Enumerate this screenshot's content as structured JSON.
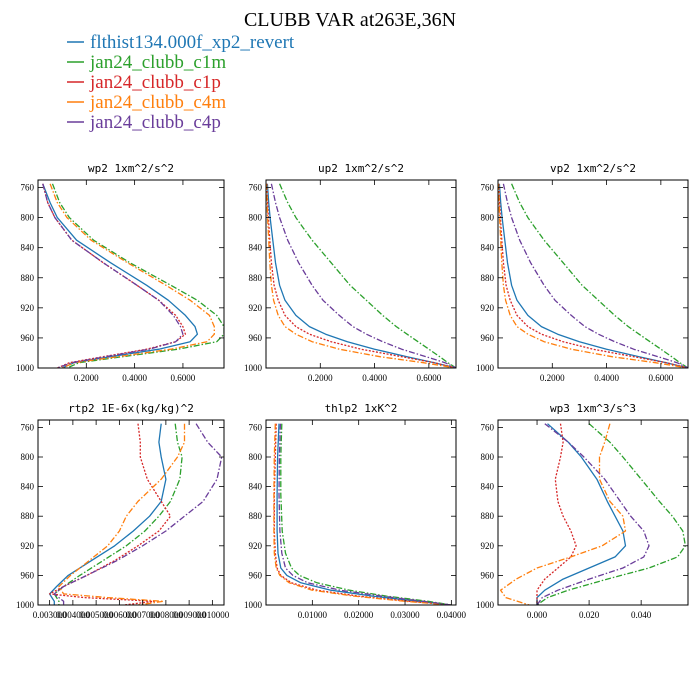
{
  "figure": {
    "title": "CLUBB VAR at263E,36N"
  },
  "legend": [
    {
      "name": "flthist134.000f_xp2_revert",
      "color": "#1f77b4",
      "dash": "solid"
    },
    {
      "name": "jan24_clubb_c1m",
      "color": "#2ca02c",
      "dash": "dashdot"
    },
    {
      "name": "jan24_clubb_c1p",
      "color": "#d62728",
      "dash": "dot"
    },
    {
      "name": "jan24_clubb_c4m",
      "color": "#ff7f0e",
      "dash": "dashdot"
    },
    {
      "name": "jan24_clubb_c4p",
      "color": "#6a3d9a",
      "dash": "dashdot"
    }
  ],
  "chart_data": [
    {
      "type": "line",
      "title": "wp2  1xm^2/s^2",
      "xlim": [
        0,
        0.77
      ],
      "ylim": [
        1000,
        750
      ],
      "xticks": [
        0.2,
        0.4,
        0.6
      ],
      "xtick_labels": [
        "0.2000",
        "0.4000",
        "0.6000"
      ],
      "yticks": [
        760,
        800,
        840,
        880,
        920,
        960,
        1000
      ],
      "y": [
        755,
        780,
        800,
        830,
        860,
        890,
        910,
        930,
        945,
        955,
        965,
        975,
        985,
        993,
        1000
      ],
      "series": [
        {
          "name": "flthist134.000f_xp2_revert",
          "values": [
            0.02,
            0.05,
            0.08,
            0.16,
            0.3,
            0.45,
            0.54,
            0.61,
            0.65,
            0.66,
            0.63,
            0.5,
            0.3,
            0.15,
            0.1
          ]
        },
        {
          "name": "jan24_clubb_c1m",
          "values": [
            0.06,
            0.09,
            0.13,
            0.23,
            0.38,
            0.55,
            0.66,
            0.74,
            0.77,
            0.77,
            0.74,
            0.58,
            0.35,
            0.17,
            0.12
          ]
        },
        {
          "name": "jan24_clubb_c1p",
          "values": [
            0.02,
            0.04,
            0.07,
            0.14,
            0.27,
            0.41,
            0.5,
            0.57,
            0.6,
            0.61,
            0.57,
            0.45,
            0.27,
            0.13,
            0.08
          ]
        },
        {
          "name": "jan24_clubb_c4m",
          "values": [
            0.05,
            0.08,
            0.12,
            0.22,
            0.37,
            0.53,
            0.63,
            0.71,
            0.73,
            0.73,
            0.7,
            0.55,
            0.33,
            0.15,
            0.1
          ]
        },
        {
          "name": "jan24_clubb_c4p",
          "values": [
            0.02,
            0.04,
            0.07,
            0.14,
            0.27,
            0.41,
            0.5,
            0.56,
            0.59,
            0.6,
            0.57,
            0.46,
            0.28,
            0.14,
            0.08
          ]
        }
      ]
    },
    {
      "type": "line",
      "title": "up2  1xm^2/s^2",
      "xlim": [
        0,
        0.7
      ],
      "ylim": [
        1000,
        750
      ],
      "xticks": [
        0.2,
        0.4,
        0.6
      ],
      "xtick_labels": [
        "0.2000",
        "0.4000",
        "0.6000"
      ],
      "yticks": [
        760,
        800,
        840,
        880,
        920,
        960,
        1000
      ],
      "y": [
        755,
        780,
        800,
        830,
        860,
        890,
        910,
        930,
        945,
        955,
        965,
        975,
        985,
        993,
        1000
      ],
      "series": [
        {
          "name": "flthist134.000f_xp2_revert",
          "values": [
            0.005,
            0.01,
            0.015,
            0.025,
            0.035,
            0.05,
            0.07,
            0.11,
            0.16,
            0.22,
            0.3,
            0.4,
            0.52,
            0.62,
            0.7
          ]
        },
        {
          "name": "jan24_clubb_c1m",
          "values": [
            0.05,
            0.08,
            0.11,
            0.17,
            0.24,
            0.31,
            0.37,
            0.43,
            0.48,
            0.52,
            0.56,
            0.6,
            0.64,
            0.67,
            0.7
          ]
        },
        {
          "name": "jan24_clubb_c1p",
          "values": [
            0.003,
            0.006,
            0.009,
            0.014,
            0.02,
            0.03,
            0.045,
            0.07,
            0.11,
            0.16,
            0.24,
            0.35,
            0.5,
            0.62,
            0.7
          ]
        },
        {
          "name": "jan24_clubb_c4m",
          "values": [
            0.002,
            0.004,
            0.006,
            0.01,
            0.014,
            0.02,
            0.028,
            0.045,
            0.07,
            0.11,
            0.17,
            0.27,
            0.42,
            0.58,
            0.7
          ]
        },
        {
          "name": "jan24_clubb_c4p",
          "values": [
            0.02,
            0.035,
            0.05,
            0.08,
            0.12,
            0.17,
            0.21,
            0.27,
            0.32,
            0.37,
            0.43,
            0.5,
            0.59,
            0.66,
            0.7
          ]
        }
      ]
    },
    {
      "type": "line",
      "title": "vp2  1xm^2/s^2",
      "xlim": [
        0,
        0.7
      ],
      "ylim": [
        1000,
        750
      ],
      "xticks": [
        0.2,
        0.4,
        0.6
      ],
      "xtick_labels": [
        "0.2000",
        "0.4000",
        "0.6000"
      ],
      "yticks": [
        760,
        800,
        840,
        880,
        920,
        960,
        1000
      ],
      "y": [
        755,
        780,
        800,
        830,
        860,
        890,
        910,
        930,
        945,
        955,
        965,
        975,
        985,
        993,
        1000
      ],
      "series": [
        {
          "name": "flthist134.000f_xp2_revert",
          "values": [
            0.005,
            0.01,
            0.015,
            0.025,
            0.035,
            0.05,
            0.07,
            0.11,
            0.16,
            0.22,
            0.3,
            0.4,
            0.52,
            0.62,
            0.7
          ]
        },
        {
          "name": "jan24_clubb_c1m",
          "values": [
            0.05,
            0.08,
            0.11,
            0.17,
            0.24,
            0.31,
            0.37,
            0.43,
            0.48,
            0.52,
            0.56,
            0.6,
            0.64,
            0.67,
            0.7
          ]
        },
        {
          "name": "jan24_clubb_c1p",
          "values": [
            0.003,
            0.006,
            0.009,
            0.014,
            0.02,
            0.03,
            0.045,
            0.07,
            0.11,
            0.16,
            0.24,
            0.35,
            0.5,
            0.62,
            0.7
          ]
        },
        {
          "name": "jan24_clubb_c4m",
          "values": [
            0.002,
            0.004,
            0.006,
            0.01,
            0.014,
            0.02,
            0.028,
            0.045,
            0.07,
            0.11,
            0.17,
            0.27,
            0.42,
            0.58,
            0.7
          ]
        },
        {
          "name": "jan24_clubb_c4p",
          "values": [
            0.02,
            0.035,
            0.05,
            0.08,
            0.12,
            0.17,
            0.21,
            0.27,
            0.32,
            0.37,
            0.43,
            0.5,
            0.59,
            0.66,
            0.7
          ]
        }
      ]
    },
    {
      "type": "line",
      "title": "rtp2  1E-6x(kg/kg)^2",
      "xlim": [
        0.0025,
        0.0105
      ],
      "ylim": [
        1000,
        750
      ],
      "xticks": [
        0.003,
        0.004,
        0.005,
        0.006,
        0.007,
        0.008,
        0.009,
        0.01
      ],
      "xtick_labels": [
        "0.003000",
        "0.004000",
        "0.005000",
        "0.006000",
        "0.007000",
        "0.008000",
        "0.009000",
        "0.010000"
      ],
      "yticks": [
        760,
        800,
        840,
        880,
        920,
        960,
        1000
      ],
      "y": [
        755,
        780,
        800,
        830,
        860,
        880,
        900,
        920,
        940,
        960,
        975,
        985,
        990,
        995,
        1000
      ],
      "series": [
        {
          "name": "flthist134.000f_xp2_revert",
          "values": [
            0.0078,
            0.0077,
            0.0078,
            0.008,
            0.0078,
            0.0073,
            0.0066,
            0.0058,
            0.0048,
            0.0038,
            0.0033,
            0.003,
            0.0031,
            0.0032,
            0.0032
          ]
        },
        {
          "name": "jan24_clubb_c1m",
          "values": [
            0.0084,
            0.0085,
            0.0087,
            0.0086,
            0.0082,
            0.0077,
            0.0071,
            0.0063,
            0.0053,
            0.0043,
            0.0036,
            0.0032,
            0.0033,
            0.0034,
            0.0034
          ]
        },
        {
          "name": "jan24_clubb_c1p",
          "values": [
            0.0068,
            0.0069,
            0.0069,
            0.0072,
            0.0078,
            0.0082,
            0.0077,
            0.0068,
            0.0058,
            0.0046,
            0.0036,
            0.003,
            0.0045,
            0.0075,
            0.0062
          ]
        },
        {
          "name": "jan24_clubb_c4m",
          "values": [
            0.0088,
            0.0088,
            0.0085,
            0.0078,
            0.0068,
            0.0063,
            0.006,
            0.0055,
            0.0047,
            0.0039,
            0.0034,
            0.0036,
            0.0055,
            0.0079,
            0.0068
          ]
        },
        {
          "name": "jan24_clubb_c4p",
          "values": [
            0.0093,
            0.0098,
            0.0104,
            0.0102,
            0.0096,
            0.0088,
            0.008,
            0.007,
            0.0059,
            0.0046,
            0.0036,
            0.0032,
            0.0034,
            0.0036,
            0.0036
          ]
        }
      ]
    },
    {
      "type": "line",
      "title": "thlp2  1xK^2",
      "xlim": [
        0,
        0.041
      ],
      "ylim": [
        1000,
        750
      ],
      "xticks": [
        0.01,
        0.02,
        0.03,
        0.04
      ],
      "xtick_labels": [
        "0.01000",
        "0.02000",
        "0.03000",
        "0.04000"
      ],
      "yticks": [
        760,
        800,
        840,
        880,
        920,
        960,
        1000
      ],
      "y": [
        755,
        800,
        850,
        900,
        930,
        950,
        960,
        970,
        980,
        988,
        995,
        1000
      ],
      "series": [
        {
          "name": "flthist134.000f_xp2_revert",
          "values": [
            0.0028,
            0.0025,
            0.0024,
            0.0024,
            0.0026,
            0.0032,
            0.0045,
            0.0075,
            0.014,
            0.023,
            0.033,
            0.04
          ]
        },
        {
          "name": "jan24_clubb_c1m",
          "values": [
            0.0034,
            0.0032,
            0.0032,
            0.0035,
            0.0042,
            0.0055,
            0.0072,
            0.011,
            0.018,
            0.026,
            0.035,
            0.04
          ]
        },
        {
          "name": "jan24_clubb_c1p",
          "values": [
            0.0022,
            0.002,
            0.0018,
            0.0018,
            0.002,
            0.0024,
            0.0032,
            0.0055,
            0.011,
            0.02,
            0.031,
            0.04
          ]
        },
        {
          "name": "jan24_clubb_c4m",
          "values": [
            0.002,
            0.0018,
            0.0017,
            0.0017,
            0.0018,
            0.0022,
            0.003,
            0.005,
            0.01,
            0.019,
            0.03,
            0.04
          ]
        },
        {
          "name": "jan24_clubb_c4p",
          "values": [
            0.0031,
            0.0029,
            0.0028,
            0.003,
            0.0034,
            0.0042,
            0.0058,
            0.009,
            0.016,
            0.025,
            0.034,
            0.04
          ]
        }
      ]
    },
    {
      "type": "line",
      "title": "wp3  1xm^3/s^3",
      "xlim": [
        -0.015,
        0.058
      ],
      "ylim": [
        1000,
        750
      ],
      "xticks": [
        0.0,
        0.02,
        0.04
      ],
      "xtick_labels": [
        "0.000",
        "0.020",
        "0.040"
      ],
      "yticks": [
        760,
        800,
        840,
        880,
        920,
        960,
        1000
      ],
      "y": [
        755,
        780,
        800,
        830,
        860,
        880,
        900,
        920,
        935,
        950,
        965,
        980,
        990,
        1000
      ],
      "series": [
        {
          "name": "flthist134.000f_xp2_revert",
          "values": [
            0.004,
            0.012,
            0.017,
            0.023,
            0.027,
            0.03,
            0.033,
            0.034,
            0.03,
            0.02,
            0.01,
            0.003,
            0.0,
            0.0
          ]
        },
        {
          "name": "jan24_clubb_c1m",
          "values": [
            0.02,
            0.028,
            0.033,
            0.04,
            0.047,
            0.052,
            0.056,
            0.057,
            0.054,
            0.043,
            0.027,
            0.012,
            0.004,
            0.0
          ]
        },
        {
          "name": "jan24_clubb_c1p",
          "values": [
            0.009,
            0.01,
            0.009,
            0.007,
            0.008,
            0.01,
            0.013,
            0.015,
            0.013,
            0.008,
            0.003,
            0.0,
            0.0,
            0.0
          ]
        },
        {
          "name": "jan24_clubb_c4m",
          "values": [
            0.028,
            0.026,
            0.024,
            0.024,
            0.028,
            0.033,
            0.034,
            0.025,
            0.013,
            0.0,
            -0.008,
            -0.014,
            -0.012,
            -0.003
          ]
        },
        {
          "name": "jan24_clubb_c4p",
          "values": [
            0.003,
            0.012,
            0.018,
            0.026,
            0.032,
            0.036,
            0.041,
            0.043,
            0.041,
            0.033,
            0.02,
            0.008,
            0.002,
            0.0
          ]
        }
      ]
    }
  ]
}
